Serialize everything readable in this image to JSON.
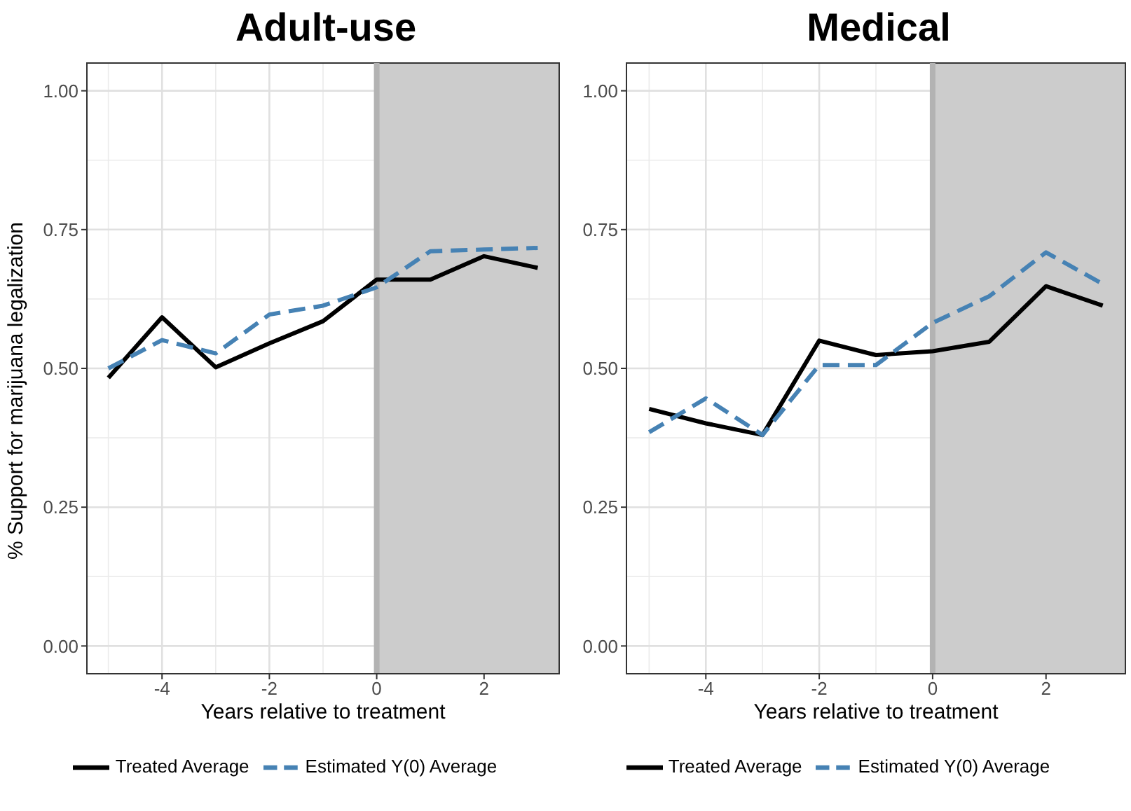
{
  "chart_data": [
    {
      "type": "line",
      "title": "Adult-use",
      "xlabel": "Years relative to treatment",
      "ylabel": "% Support for marijuana legalization",
      "x": [
        -5,
        -4,
        -3,
        -2,
        -1,
        0,
        1,
        2,
        3
      ],
      "series": [
        {
          "name": "Treated Average",
          "color": "#000000",
          "line_style": "solid",
          "values": [
            0.483,
            0.592,
            0.502,
            0.545,
            0.585,
            0.66,
            0.66,
            0.702,
            0.681
          ]
        },
        {
          "name": "Estimated Y(0) Average",
          "color": "#4682b4",
          "line_style": "dashed",
          "values": [
            0.5,
            0.551,
            0.527,
            0.597,
            0.613,
            0.646,
            0.711,
            0.714,
            0.717
          ]
        }
      ],
      "xlim": [
        -5.4,
        3.4
      ],
      "ylim": [
        -0.05,
        1.05
      ],
      "xticks": [
        -4,
        -2,
        0,
        2
      ],
      "yticks": [
        {
          "value": 0,
          "label": "0.00"
        },
        {
          "value": 0.25,
          "label": "0.25"
        },
        {
          "value": 0.5,
          "label": "0.50"
        },
        {
          "value": 0.75,
          "label": "0.75"
        },
        {
          "value": 1,
          "label": "1.00"
        }
      ],
      "bands": [
        {
          "axis": "x",
          "from": 0,
          "to": 3.4,
          "color": "#cccccc"
        }
      ],
      "ref_lines": [
        {
          "axis": "x",
          "value": 0,
          "color": "#b3b3b3"
        }
      ],
      "grid": true,
      "legend": "bottom",
      "marker": "none"
    },
    {
      "type": "line",
      "title": "Medical",
      "xlabel": "Years relative to treatment",
      "x": [
        -5,
        -4,
        -3,
        -2,
        -1,
        0,
        1,
        2,
        3
      ],
      "series": [
        {
          "name": "Treated Average",
          "color": "#000000",
          "line_style": "solid",
          "values": [
            0.427,
            0.401,
            0.38,
            0.55,
            0.524,
            0.531,
            0.548,
            0.648,
            0.613
          ]
        },
        {
          "name": "Estimated Y(0) Average",
          "color": "#4682b4",
          "line_style": "dashed",
          "values": [
            0.385,
            0.446,
            0.38,
            0.506,
            0.506,
            0.582,
            0.63,
            0.709,
            0.652
          ]
        }
      ],
      "xlim": [
        -5.4,
        3.4
      ],
      "ylim": [
        -0.05,
        1.05
      ],
      "xticks": [
        -4,
        -2,
        0,
        2
      ],
      "yticks": [
        {
          "value": 0,
          "label": "0.00"
        },
        {
          "value": 0.25,
          "label": "0.25"
        },
        {
          "value": 0.5,
          "label": "0.50"
        },
        {
          "value": 0.75,
          "label": "0.75"
        },
        {
          "value": 1,
          "label": "1.00"
        }
      ],
      "bands": [
        {
          "axis": "x",
          "from": 0,
          "to": 3.4,
          "color": "#cccccc"
        }
      ],
      "ref_lines": [
        {
          "axis": "x",
          "value": 0,
          "color": "#b3b3b3"
        }
      ],
      "grid": true,
      "legend": "bottom",
      "marker": "none"
    }
  ]
}
